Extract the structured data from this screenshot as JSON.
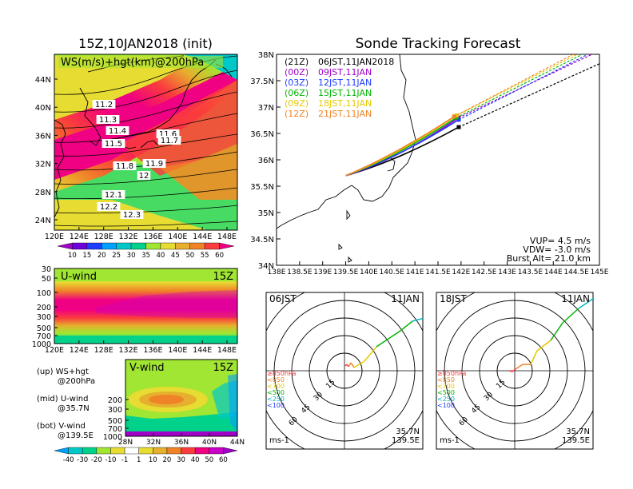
{
  "map_panel": {
    "title": "15Z,10JAN2018 (init)",
    "label": "WS(m/s)+hgt(km)@200hPa",
    "lat_ticks": [
      "44N",
      "40N",
      "36N",
      "32N",
      "28N",
      "24N"
    ],
    "lon_ticks": [
      "120E",
      "124E",
      "128E",
      "132E",
      "136E",
      "140E",
      "144E",
      "148E"
    ],
    "height_labels": [
      "11.2",
      "11.3",
      "11.4",
      "11.5",
      "11.6",
      "11.7",
      "11.8",
      "11.9",
      "12",
      "12.1",
      "12.2",
      "12.3"
    ],
    "colorbar_ticks": [
      "10",
      "15",
      "20",
      "25",
      "30",
      "35",
      "40",
      "45",
      "50",
      "55",
      "60"
    ],
    "colorbar_colors": [
      "#a000c8",
      "#6e00dc",
      "#1e3cff",
      "#00a0ff",
      "#00c8c8",
      "#00d28c",
      "#a0e632",
      "#e6dc32",
      "#e6af2d",
      "#f08228",
      "#fa3c3c",
      "#f00082"
    ]
  },
  "uwind_panel": {
    "label": "U-wind",
    "time": "15Z",
    "p_ticks": [
      "30",
      "50",
      "100",
      "200",
      "300",
      "500",
      "700",
      "1000"
    ],
    "lon_ticks": [
      "120E",
      "124E",
      "128E",
      "132E",
      "136E",
      "140E",
      "144E",
      "148E"
    ]
  },
  "vwind_panel": {
    "label": "V-wind",
    "time": "15Z",
    "p_ticks": [
      "200",
      "300",
      "500",
      "700",
      "1000"
    ],
    "lat_ticks": [
      "28N",
      "32N",
      "36N",
      "40N",
      "44N"
    ],
    "colorbar_ticks": [
      "-40",
      "-30",
      "-20",
      "-10",
      "-1",
      "1",
      "10",
      "20",
      "30",
      "40",
      "50",
      "60"
    ],
    "colorbar_colors": [
      "#00a0ff",
      "#00c8c8",
      "#00d28c",
      "#a0e632",
      "#e6dc32",
      "#ffffff",
      "#e6dc32",
      "#e6af2d",
      "#f08228",
      "#fa3c3c",
      "#f00082",
      "#c800c8",
      "#a000c8"
    ]
  },
  "legend_notes": [
    {
      "label": "(up) WS+hgt",
      "sub": "@200hPa"
    },
    {
      "label": "(mid) U-wind",
      "sub": "@35.7N"
    },
    {
      "label": "(bot) V-wind",
      "sub": "@139.5E"
    }
  ],
  "tracking": {
    "title": "Sonde Tracking Forecast",
    "lat_ticks": [
      "38N",
      "37.5N",
      "37N",
      "36.5N",
      "36N",
      "35.5N",
      "35N",
      "34.5N",
      "34N"
    ],
    "lon_ticks": [
      "138E",
      "138.5E",
      "139E",
      "139.5E",
      "140E",
      "140.5E",
      "141E",
      "141.5E",
      "142E",
      "142.5E",
      "143E",
      "143.5E",
      "144E",
      "144.5E",
      "145E"
    ],
    "vup": "VUP= 4.5 m/s",
    "vdw": "VDW= -3.0 m/s",
    "burst": "Burst Alt= 21.0 km",
    "launches": [
      {
        "z": "(21Z)",
        "jst": "06JST,11JAN2018",
        "color": "#000000"
      },
      {
        "z": "(00Z)",
        "jst": "09JST,11JAN",
        "color": "#a000c8"
      },
      {
        "z": "(03Z)",
        "jst": "12JST,11JAN",
        "color": "#1e3cff"
      },
      {
        "z": "(06Z)",
        "jst": "15JST,11JAN",
        "color": "#00b400"
      },
      {
        "z": "(09Z)",
        "jst": "18JST,11JAN",
        "color": "#e6c800"
      },
      {
        "z": "(12Z)",
        "jst": "21JST,11JAN",
        "color": "#f08228"
      }
    ]
  },
  "hodographs": [
    {
      "time": "06JST",
      "date": "11JAN",
      "lat": "35.7N",
      "lon": "139.5E",
      "unit": "ms-1"
    },
    {
      "time": "18JST",
      "date": "11JAN",
      "lat": "35.7N",
      "lon": "139.5E",
      "unit": "ms-1"
    }
  ],
  "hodo_ring_labels": [
    "15",
    "30",
    "45",
    "60"
  ],
  "hodo_levels": [
    {
      "label": "≥850hPa",
      "color": "#fa3c3c"
    },
    {
      "label": "<850",
      "color": "#f08228"
    },
    {
      "label": "<700",
      "color": "#e6c800"
    },
    {
      "label": "<500",
      "color": "#00b400"
    },
    {
      "label": "<250",
      "color": "#00b4c8"
    },
    {
      "label": "<100",
      "color": "#1e3cff"
    }
  ]
}
